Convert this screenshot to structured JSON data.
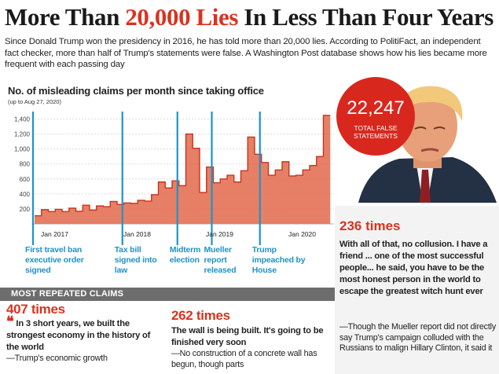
{
  "headline": {
    "prefix": "More Than ",
    "highlight": "20,000 Lies",
    "suffix": " In Less Than Four Years"
  },
  "intro": "Since Donald Trump won the presidency in 2016, he has told more than 20,000 lies. According to PolitiFact, an independent fact checker, more than half of Trump's statements were false. A Washington Post database shows how his lies became more frequent with each passing day",
  "chart_data": {
    "type": "area",
    "title": "No. of misleading claims per month since taking office",
    "subtitle": "(up to Aug 27, 2020)",
    "yticks": [
      200,
      400,
      600,
      800,
      "1,000",
      "1,200",
      "1,400"
    ],
    "ylim": [
      0,
      1500
    ],
    "xticks": [
      {
        "label": "Jan 2017",
        "i": 0
      },
      {
        "label": "Jan 2018",
        "i": 12
      },
      {
        "label": "Jan 2019",
        "i": 24
      },
      {
        "label": "Jan 2020",
        "i": 36
      }
    ],
    "values": [
      110,
      190,
      165,
      195,
      165,
      210,
      170,
      250,
      185,
      240,
      230,
      300,
      260,
      280,
      275,
      315,
      305,
      390,
      560,
      480,
      575,
      510,
      1200,
      1010,
      420,
      760,
      550,
      600,
      650,
      560,
      710,
      1160,
      930,
      820,
      650,
      720,
      830,
      640,
      650,
      720,
      780,
      900,
      1450
    ],
    "fill_color": "#e2684a",
    "grid": true,
    "events": [
      {
        "i": 0,
        "label": "First travel ban executive order signed"
      },
      {
        "i": 13,
        "label": "Tax bill signed into law"
      },
      {
        "i": 21,
        "label": "Midterm election"
      },
      {
        "i": 26,
        "label": "Mueller report released"
      },
      {
        "i": 33,
        "label": "Trump impeached by House"
      }
    ]
  },
  "badge": {
    "number": "22,247",
    "label": "TOTAL FALSE STATEMENTS"
  },
  "right_panel": {
    "count": "236 times",
    "quote": "With all of that, no collusion. I have a friend ... one of the most successful people... he said, you have to be the most honest person in the world to escape the greatest witch hunt ever",
    "note": "—Though the Mueller report did not directly say Trump's campaign colluded with the Russians to malign Hillary Clinton, it said it"
  },
  "most_repeated": {
    "heading": "MOST REPEATED CLAIMS",
    "claims": [
      {
        "count": "407 times",
        "quote": "In 3 short years, we built the strongest economy in the history of the world",
        "note": "—Trump's economic growth"
      },
      {
        "count": "262 times",
        "quote": "The wall is being built. It's going to be finished very soon",
        "note": "—No construction of a concrete wall has begun, though parts"
      }
    ]
  },
  "colors": {
    "accent": "#d9331f",
    "event_blue": "#1f93c6",
    "bar_grey": "#6d6d6d"
  }
}
